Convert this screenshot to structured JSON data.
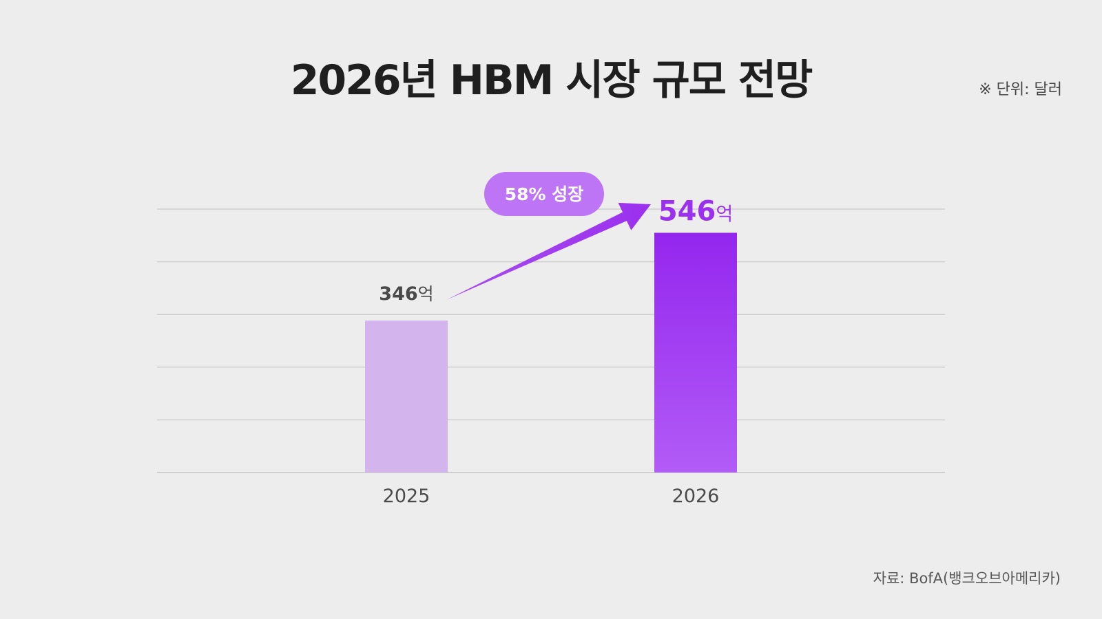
{
  "title": "2026년 HBM 시장 규모 전망",
  "unit_note": "※ 단위: 달러",
  "source": "자료: BofA(뱅크오브아메리카)",
  "growth_label": "58% 성장",
  "colors": {
    "bar_2025": "#d4b4ec",
    "bar_2026_top": "#9426ee",
    "bar_2026_bottom": "#b25cf7",
    "accent": "#9b30ee",
    "badge": "#bd75f5",
    "gridline": "#cfcfcf",
    "value_2025": "#4a4a4a"
  },
  "chart_data": {
    "type": "bar",
    "categories": [
      "2025",
      "2026"
    ],
    "values": [
      346,
      546
    ],
    "value_labels": [
      {
        "number": "346",
        "unit": "억"
      },
      {
        "number": "546",
        "unit": "억"
      }
    ],
    "title": "2026년 HBM 시장 규모 전망",
    "xlabel": "",
    "ylabel": "",
    "ylim": [
      0,
      600
    ],
    "grid": true,
    "annotation": "58% 성장"
  }
}
